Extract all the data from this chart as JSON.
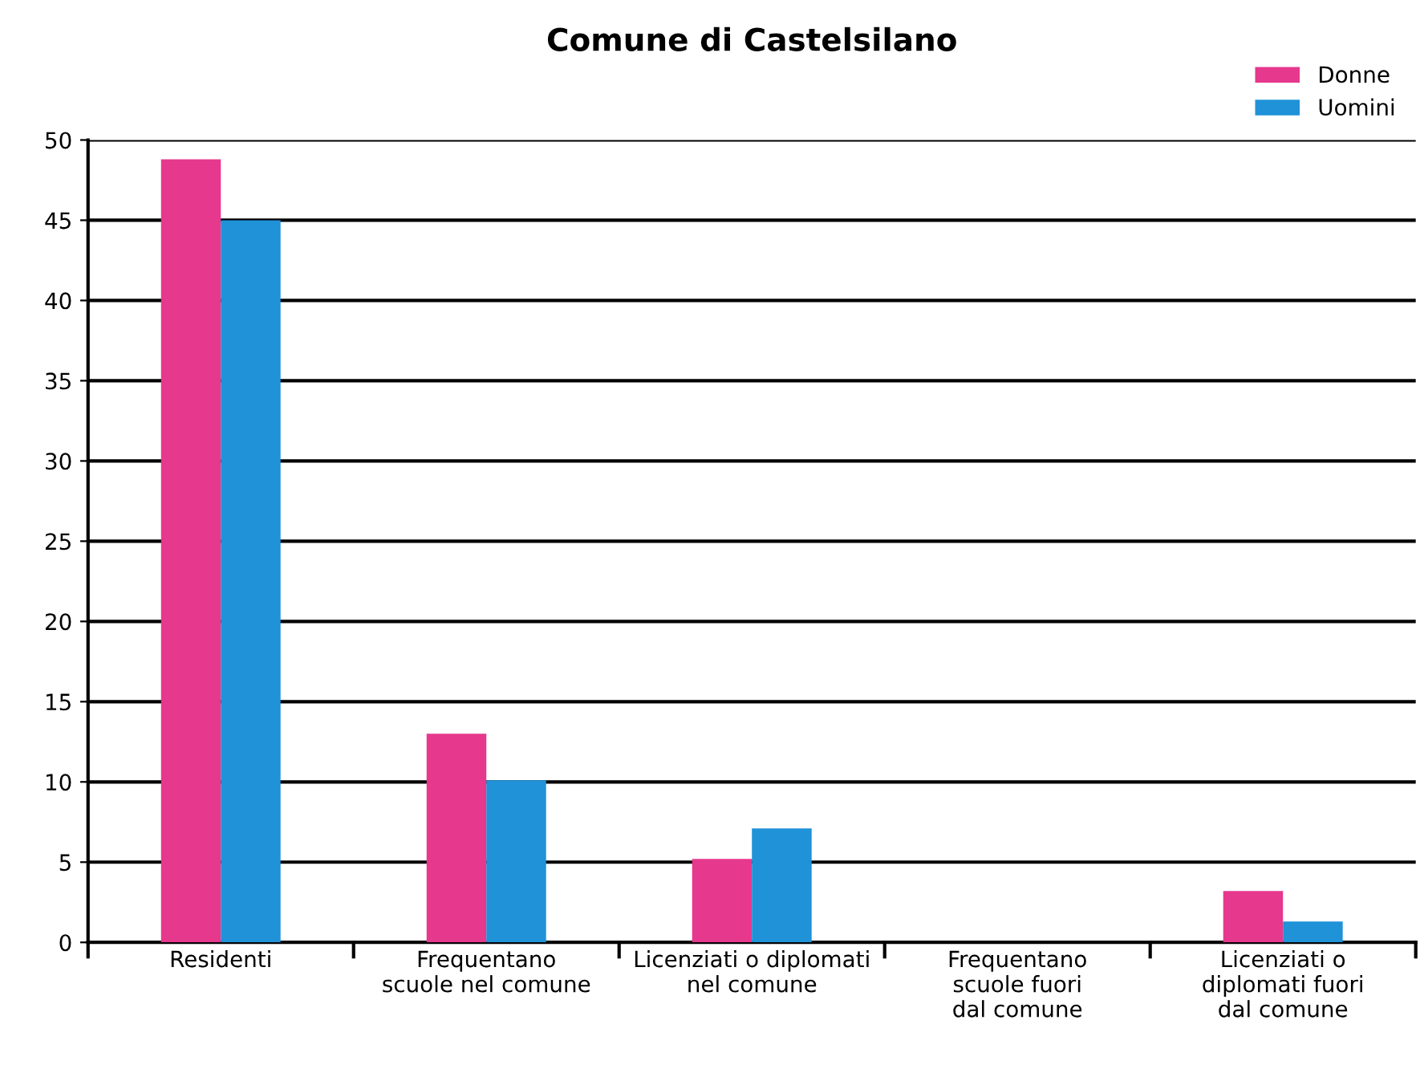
{
  "chart_data": {
    "type": "bar",
    "title": "Comune di Castelsilano",
    "categories": [
      "Residenti",
      "Frequentano\nscuole nel comune",
      "Licenziati o diplomati\nnel comune",
      "Frequentano\nscuole fuori\ndal comune",
      "Licenziati o\ndiplomati fuori\ndal comune"
    ],
    "series": [
      {
        "name": "Donne",
        "color": "#e6388c",
        "values": [
          48.8,
          13,
          5.2,
          0,
          3.2
        ]
      },
      {
        "name": "Uomini",
        "color": "#1f92d8",
        "values": [
          45,
          10.1,
          7.1,
          0,
          1.3
        ]
      }
    ],
    "ylim": [
      0,
      50
    ],
    "yticks": [
      0,
      5,
      10,
      15,
      20,
      25,
      30,
      35,
      40,
      45,
      50
    ],
    "grid": "y",
    "legend": "top right"
  }
}
